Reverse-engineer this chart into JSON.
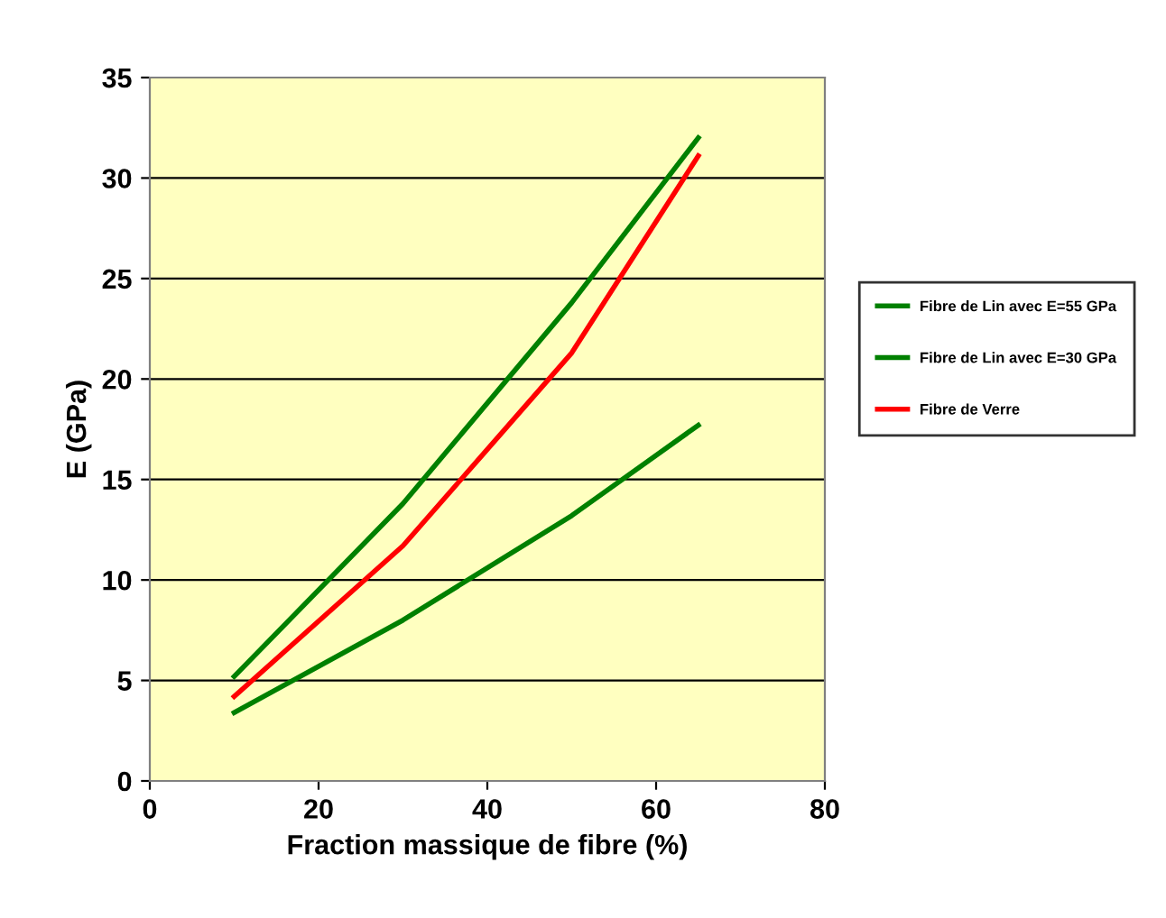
{
  "chart_data": {
    "type": "line",
    "xlabel": "Fraction massique de fibre (%)",
    "ylabel": "E (GPa)",
    "xlim": [
      0,
      80
    ],
    "ylim": [
      0,
      35
    ],
    "xticks": [
      0,
      20,
      40,
      60,
      80
    ],
    "yticks": [
      0,
      5,
      10,
      15,
      20,
      25,
      30,
      35
    ],
    "grid": "y",
    "legend": "right",
    "marker": "none",
    "line_style": "solid",
    "x": [
      10,
      30,
      50,
      65
    ],
    "series": [
      {
        "name": "Fibre de Lin avec E=55 GPa",
        "color": "#008000",
        "values": [
          5.2,
          13.8,
          23.8,
          32.0
        ]
      },
      {
        "name": "Fibre de Lin avec E=30 GPa",
        "color": "#008000",
        "values": [
          3.4,
          8.0,
          13.2,
          17.7
        ]
      },
      {
        "name": "Fibre de Verre",
        "color": "#ff0000",
        "values": [
          4.2,
          11.7,
          21.3,
          31.1
        ]
      }
    ]
  }
}
